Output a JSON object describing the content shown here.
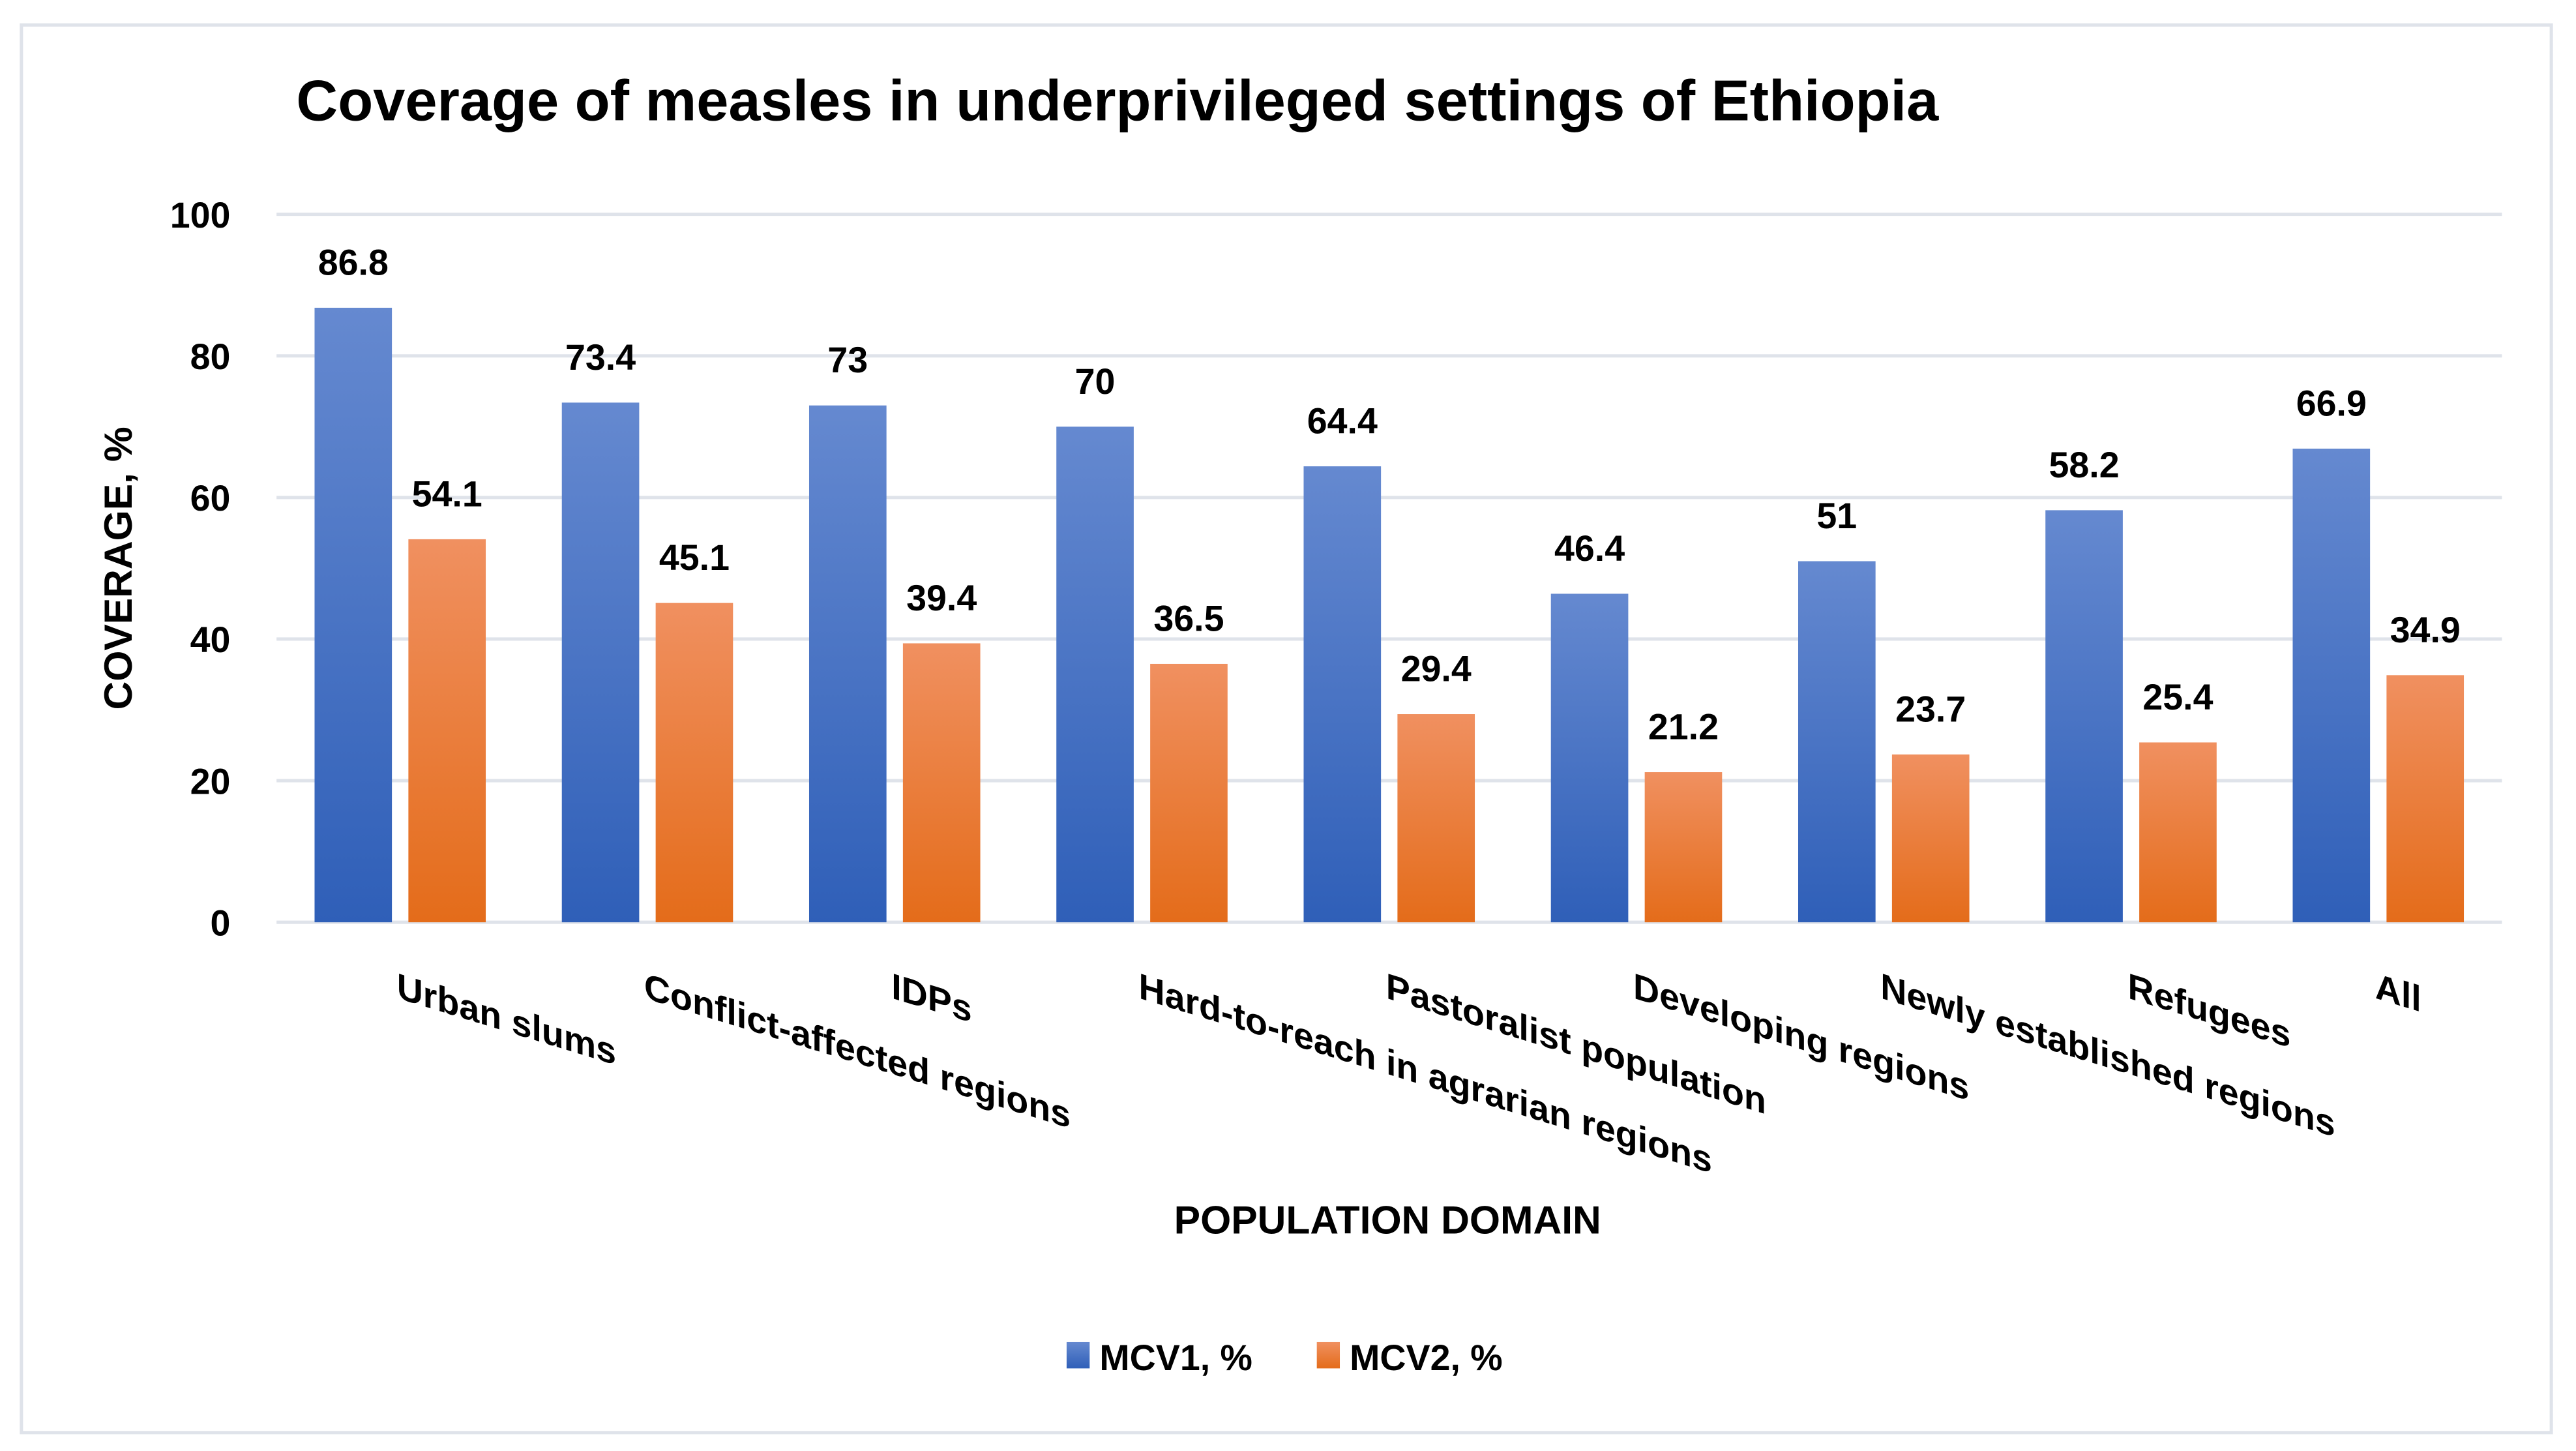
{
  "chart_data": {
    "type": "bar",
    "title": "Coverage of measles in underprivileged settings of Ethiopia",
    "xlabel": "POPULATION DOMAIN",
    "ylabel": "COVERAGE, %",
    "ylim": [
      0,
      100
    ],
    "yticks": [
      0,
      20,
      40,
      60,
      80,
      100
    ],
    "grid": true,
    "legend_position": "bottom",
    "categories": [
      "Urban slums",
      "Conflict-affected regions",
      "IDPs",
      "Hard-to-reach in agrarian regions",
      "Pastoralist population",
      "Developing regions",
      "Newly established regions",
      "Refugees",
      "All"
    ],
    "series": [
      {
        "name": "MCV1, %",
        "color": "#4472C4",
        "color_light": "#6589d0",
        "color_dark": "#2f5fb8",
        "values": [
          86.8,
          73.4,
          73,
          70,
          64.4,
          46.4,
          51,
          58.2,
          66.9
        ]
      },
      {
        "name": "MCV2, %",
        "color": "#ED7D31",
        "color_light": "#f09060",
        "color_dark": "#e46c1a",
        "values": [
          54.1,
          45.1,
          39.4,
          36.5,
          29.4,
          21.2,
          23.7,
          25.4,
          34.9
        ]
      }
    ]
  }
}
